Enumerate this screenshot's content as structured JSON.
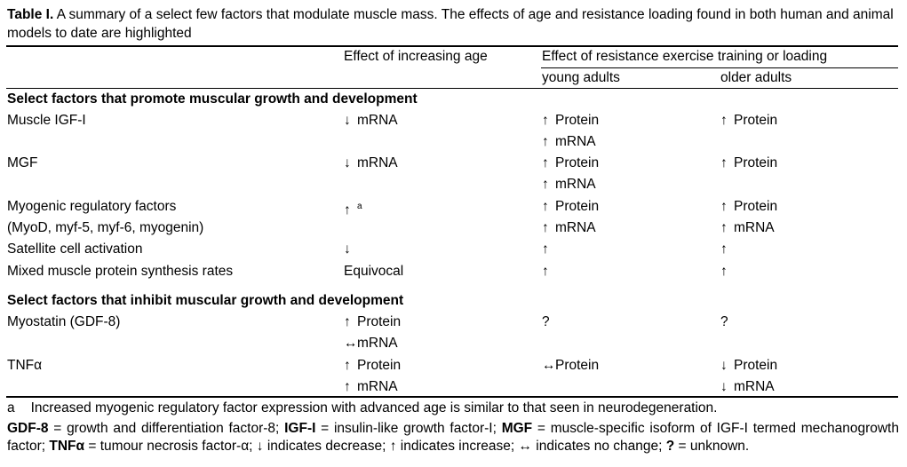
{
  "caption": {
    "label": "Table I.",
    "text": "A summary of a select few factors that modulate muscle mass. The effects of age and resistance loading found in both human and animal models to date are highlighted"
  },
  "header": {
    "col2": "Effect of increasing age",
    "col3_group": "Effect of resistance exercise training or loading",
    "col3": "young adults",
    "col4": "older adults"
  },
  "sections": [
    {
      "title": "Select factors that promote muscular growth and development",
      "rows": [
        {
          "name": [
            "Muscle IGF-I"
          ],
          "age": [
            "↓ mRNA"
          ],
          "young": [
            "↑ Protein",
            "↑ mRNA"
          ],
          "older": [
            "↑ Protein"
          ]
        },
        {
          "name": [
            "MGF"
          ],
          "age": [
            "↓ mRNA"
          ],
          "young": [
            "↑ Protein",
            "↑ mRNA"
          ],
          "older": [
            "↑ Protein"
          ]
        },
        {
          "name": [
            "Myogenic regulatory factors",
            "(MyoD, myf-5, myf-6, myogenin)"
          ],
          "age": [
            "↑a"
          ],
          "young": [
            "↑ Protein",
            "↑ mRNA"
          ],
          "older": [
            "↑ Protein",
            "↑ mRNA"
          ]
        },
        {
          "name": [
            "Satellite cell activation"
          ],
          "age": [
            "↓"
          ],
          "young": [
            "↑"
          ],
          "older": [
            "↑"
          ]
        },
        {
          "name": [
            "Mixed muscle protein synthesis rates"
          ],
          "age": [
            "Equivocal"
          ],
          "young": [
            "↑"
          ],
          "older": [
            "↑"
          ]
        }
      ]
    },
    {
      "title": "Select factors that inhibit muscular growth and development",
      "rows": [
        {
          "name": [
            "Myostatin (GDF-8)"
          ],
          "age": [
            "↑ Protein",
            "↔ mRNA"
          ],
          "young": [
            "?"
          ],
          "older": [
            "?"
          ]
        },
        {
          "name": [
            "TNFα"
          ],
          "age": [
            "↑ Protein",
            "↑ mRNA"
          ],
          "young": [
            "↔ Protein"
          ],
          "older": [
            "↓ Protein",
            "↓ mRNA"
          ]
        }
      ]
    }
  ],
  "footnote_a": {
    "marker": "a",
    "text": "Increased myogenic regulatory factor expression with advanced age is similar to that seen in neurodegeneration."
  },
  "abbreviations": {
    "gdf8_term": "GDF-8",
    "gdf8_def": " = growth and differentiation factor-8; ",
    "igf_term": "IGF-I",
    "igf_def": " = insulin-like growth factor-I; ",
    "mgf_term": "MGF",
    "mgf_def": " = muscle-specific isoform of IGF-I termed mechanogrowth factor; ",
    "tnf_term": "TNFα",
    "tnf_def": " = tumour necrosis factor-α; ↓ indicates decrease; ↑ indicates increase; ↔ indicates no change; ",
    "unk_term": "?",
    "unk_def": " = unknown."
  }
}
